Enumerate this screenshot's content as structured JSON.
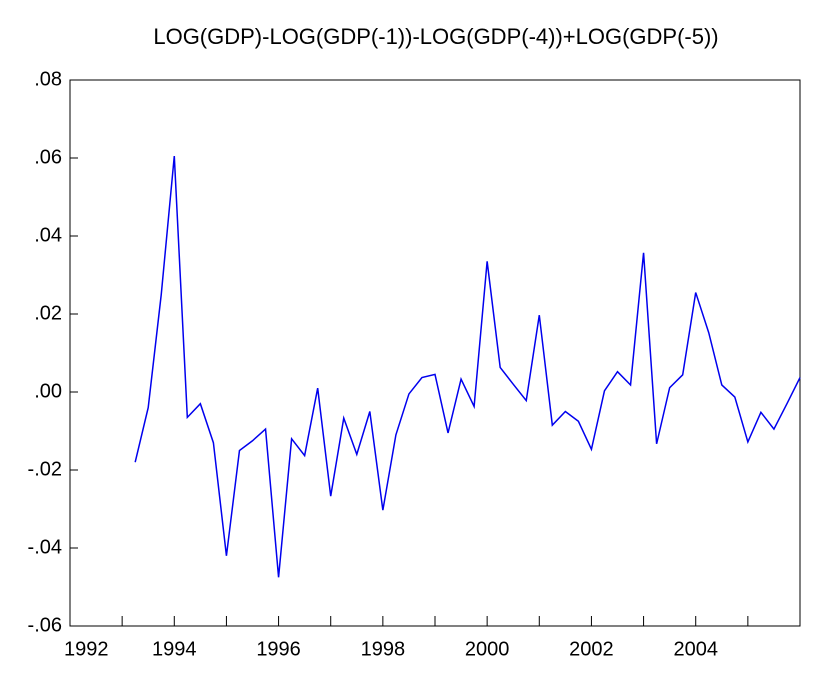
{
  "chart_data": {
    "type": "line",
    "title": "LOG(GDP)-LOG(GDP(-1))-LOG(GDP(-4))+LOG(GDP(-5))",
    "x": [
      1993.25,
      1993.5,
      1993.75,
      1994,
      1994.25,
      1994.5,
      1994.75,
      1995,
      1995.25,
      1995.5,
      1995.75,
      1996,
      1996.25,
      1996.5,
      1996.75,
      1997,
      1997.25,
      1997.5,
      1997.75,
      1998,
      1998.25,
      1998.5,
      1998.75,
      1999,
      1999.25,
      1999.5,
      1999.75,
      2000,
      2000.25,
      2000.5,
      2000.75,
      2001,
      2001.25,
      2001.5,
      2001.75,
      2002,
      2002.25,
      2002.5,
      2002.75,
      2003,
      2003.25,
      2003.5,
      2003.75,
      2004,
      2004.25,
      2004.5,
      2004.75,
      2005,
      2005.25,
      2005.5,
      2005.75,
      2006
    ],
    "series": [
      {
        "name": "LOG(GDP)-LOG(GDP(-1))-LOG(GDP(-4))+LOG(GDP(-5))",
        "color": "#0000ee",
        "values": [
          -0.018,
          -0.004,
          0.025,
          0.0605,
          -0.0065,
          -0.003,
          -0.013,
          -0.042,
          -0.015,
          -0.0125,
          -0.0095,
          -0.0475,
          -0.012,
          -0.0163,
          0.001,
          -0.0267,
          -0.0067,
          -0.016,
          -0.005,
          -0.0303,
          -0.011,
          -0.0005,
          0.0037,
          0.0045,
          -0.0105,
          0.0033,
          -0.0037,
          0.0335,
          0.0063,
          0.002,
          -0.0022,
          0.0197,
          -0.0085,
          -0.005,
          -0.0075,
          -0.0147,
          0.0003,
          0.0052,
          0.0018,
          0.0357,
          -0.0133,
          0.0011,
          0.0044,
          0.0255,
          0.0152,
          0.0018,
          -0.0013,
          -0.0128,
          -0.0052,
          -0.0095,
          -0.003,
          0.0037
        ]
      }
    ],
    "xlim": [
      1992,
      2006
    ],
    "xticks": [
      1992,
      1994,
      1996,
      1998,
      2000,
      2002,
      2004
    ],
    "xminorticks": [
      1993,
      1995,
      1997,
      1999,
      2001,
      2003,
      2005
    ],
    "ylim": [
      -0.06,
      0.08
    ],
    "yticks": [
      {
        "value": -0.06,
        "label": "-.06"
      },
      {
        "value": -0.04,
        "label": "-.04"
      },
      {
        "value": -0.02,
        "label": "-.02"
      },
      {
        "value": 0,
        "label": ".00"
      },
      {
        "value": 0.02,
        "label": ".02"
      },
      {
        "value": 0.04,
        "label": ".04"
      },
      {
        "value": 0.06,
        "label": ".06"
      },
      {
        "value": 0.08,
        "label": ".08"
      }
    ],
    "grid": false
  }
}
